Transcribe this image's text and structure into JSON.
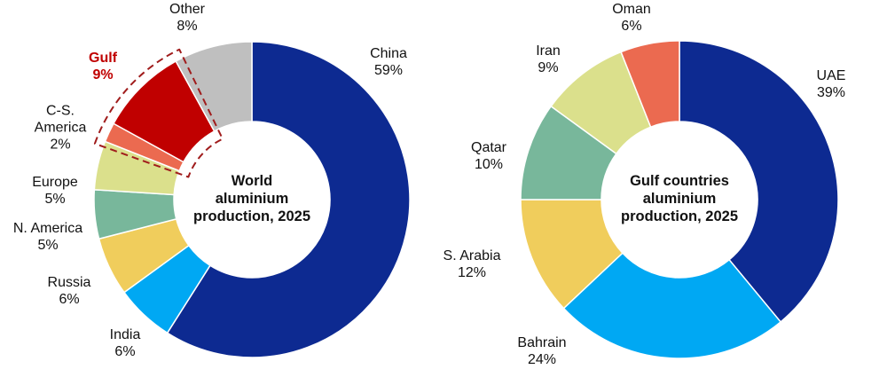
{
  "chart_data": [
    {
      "type": "pie",
      "donut": true,
      "center_label": "World\naluminium\nproduction, 2025",
      "unit": "%",
      "start": "top, clockwise",
      "slices": [
        {
          "label": "China",
          "value": 59,
          "color": "#0d2a91"
        },
        {
          "label": "India",
          "value": 6,
          "color": "#00a8f3"
        },
        {
          "label": "Russia",
          "value": 6,
          "color": "#f0cd5c"
        },
        {
          "label": "N. America",
          "value": 5,
          "color": "#78b79b"
        },
        {
          "label": "Europe",
          "value": 5,
          "color": "#dbe08c"
        },
        {
          "label": "C-S.\nAmerica",
          "value": 2,
          "color": "#eb6a50"
        },
        {
          "label": "Gulf",
          "value": 9,
          "color": "#c00000",
          "highlight": true
        },
        {
          "label": "Other",
          "value": 8,
          "color": "#bfbfbf"
        }
      ],
      "annotation": "dashed outline around Gulf and C-S. America slices",
      "annotation_color": "#a01c1c"
    },
    {
      "type": "pie",
      "donut": true,
      "center_label": "Gulf countries\naluminium\nproduction, 2025",
      "unit": "%",
      "start": "top, clockwise",
      "slices": [
        {
          "label": "UAE",
          "value": 39,
          "color": "#0d2a91"
        },
        {
          "label": "Bahrain",
          "value": 24,
          "color": "#00a8f3"
        },
        {
          "label": "S. Arabia",
          "value": 12,
          "color": "#f0cd5c"
        },
        {
          "label": "Qatar",
          "value": 10,
          "color": "#78b79b"
        },
        {
          "label": "Iran",
          "value": 9,
          "color": "#dbe08c"
        },
        {
          "label": "Oman",
          "value": 6,
          "color": "#eb6a50"
        }
      ]
    }
  ]
}
